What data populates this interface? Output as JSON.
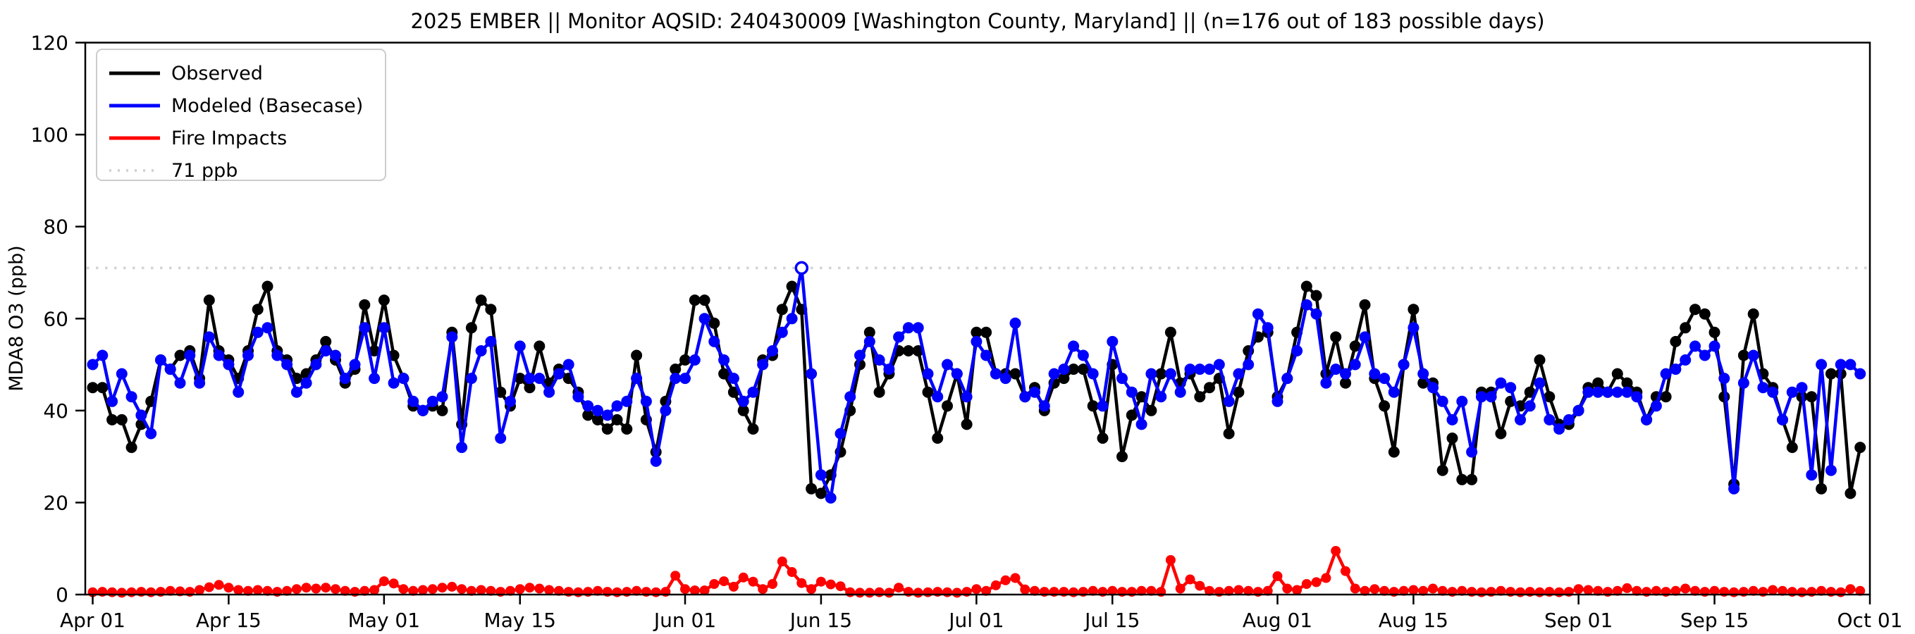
{
  "title": "2025 EMBER || Monitor AQSID: 240430009 [Washington County, Maryland] || (n=176 out of 183 possible days)",
  "y_axis": {
    "label": "MDA8 O3 (ppb)",
    "ticks": [
      0,
      20,
      40,
      60,
      80,
      100,
      120
    ],
    "min": 0,
    "max": 120
  },
  "x_axis": {
    "tick_labels": [
      "Apr 01",
      "Apr 15",
      "May 01",
      "May 15",
      "Jun 01",
      "Jun 15",
      "Jul 01",
      "Jul 15",
      "Aug 01",
      "Aug 15",
      "Sep 01",
      "Sep 15",
      "Oct 01"
    ],
    "tick_day_offsets": [
      0,
      14,
      30,
      44,
      61,
      75,
      91,
      105,
      122,
      136,
      153,
      167,
      183
    ]
  },
  "legend": {
    "items": [
      {
        "label": "Observed",
        "color": "#000000",
        "style": "solid"
      },
      {
        "label": "Modeled (Basecase)",
        "color": "#0000ff",
        "style": "solid"
      },
      {
        "label": "Fire Impacts",
        "color": "#ff0000",
        "style": "solid"
      },
      {
        "label": "71 ppb",
        "color": "#d3d3d3",
        "style": "dotted"
      }
    ]
  },
  "chart_data": {
    "type": "line",
    "title": "2025 EMBER || Monitor AQSID: 240430009 [Washington County, Maryland] || (n=176 out of 183 possible days)",
    "xlabel": "",
    "ylabel": "MDA8 O3 (ppb)",
    "ylim": [
      0,
      120
    ],
    "x_unit": "daily values, day index 0 = Apr 01, last index 182 = Sep 30",
    "n_points": 183,
    "grid": false,
    "legend_position": "upper left",
    "reference_line": {
      "value": 71,
      "label": "71 ppb",
      "color": "#d3d3d3",
      "style": "dotted"
    },
    "series": [
      {
        "name": "Observed",
        "color": "#000000",
        "marker": "circle",
        "values": [
          45,
          45,
          38,
          38,
          32,
          37,
          42,
          51,
          49,
          52,
          53,
          47,
          64,
          53,
          51,
          47,
          53,
          62,
          67,
          53,
          51,
          47,
          48,
          51,
          55,
          51,
          46,
          49,
          63,
          53,
          64,
          52,
          47,
          41,
          40,
          41,
          40,
          57,
          37,
          58,
          64,
          62,
          44,
          41,
          47,
          45,
          54,
          46,
          49,
          47,
          44,
          39,
          38,
          36,
          38,
          36,
          52,
          38,
          31,
          42,
          49,
          51,
          64,
          64,
          59,
          48,
          44,
          40,
          36,
          51,
          52,
          62,
          67,
          62,
          23,
          22,
          26,
          31,
          40,
          50,
          57,
          44,
          48,
          53,
          53,
          53,
          44,
          34,
          41,
          48,
          37,
          57,
          57,
          48,
          48,
          48,
          43,
          45,
          40,
          46,
          47,
          49,
          49,
          41,
          34,
          50,
          30,
          39,
          43,
          40,
          48,
          57,
          46,
          48,
          43,
          45,
          47,
          35,
          44,
          53,
          56,
          57,
          43,
          47,
          57,
          67,
          65,
          48,
          56,
          46,
          54,
          63,
          47,
          41,
          31,
          50,
          62,
          46,
          46,
          27,
          34,
          25,
          25,
          44,
          44,
          35,
          42,
          41,
          44,
          51,
          43,
          37,
          37,
          40,
          45,
          46,
          44,
          48,
          46,
          44,
          38,
          43,
          43,
          55,
          58,
          62,
          61,
          57,
          43,
          24,
          52,
          61,
          48,
          45,
          38,
          32,
          43,
          43,
          23,
          48,
          48,
          22,
          32
        ]
      },
      {
        "name": "Modeled (Basecase)",
        "color": "#0000ff",
        "marker": "circle",
        "open_marker_day_index": 73,
        "values": [
          50,
          52,
          42,
          48,
          43,
          39,
          35,
          51,
          49,
          46,
          52,
          46,
          56,
          52,
          50,
          44,
          52,
          57,
          58,
          52,
          50,
          44,
          46,
          50,
          53,
          52,
          47,
          50,
          58,
          47,
          58,
          46,
          47,
          42,
          40,
          42,
          43,
          56,
          32,
          47,
          53,
          55,
          34,
          42,
          54,
          47,
          47,
          44,
          48,
          50,
          43,
          41,
          40,
          39,
          41,
          42,
          47,
          42,
          29,
          40,
          47,
          47,
          51,
          60,
          55,
          51,
          47,
          42,
          44,
          50,
          53,
          57,
          60,
          71,
          48,
          26,
          21,
          35,
          43,
          52,
          55,
          51,
          49,
          56,
          58,
          58,
          48,
          43,
          50,
          48,
          43,
          55,
          52,
          48,
          47,
          59,
          43,
          44,
          41,
          48,
          49,
          54,
          52,
          48,
          41,
          55,
          47,
          44,
          37,
          48,
          43,
          48,
          44,
          49,
          49,
          49,
          50,
          42,
          48,
          50,
          61,
          58,
          42,
          47,
          53,
          63,
          61,
          46,
          49,
          48,
          50,
          56,
          48,
          47,
          44,
          50,
          58,
          48,
          45,
          42,
          38,
          42,
          31,
          43,
          43,
          46,
          45,
          38,
          41,
          46,
          38,
          36,
          38,
          40,
          44,
          44,
          44,
          44,
          44,
          43,
          38,
          41,
          48,
          49,
          51,
          54,
          52,
          54,
          47,
          23,
          46,
          52,
          45,
          44,
          38,
          44,
          45,
          26,
          50,
          27,
          50,
          50,
          48
        ]
      },
      {
        "name": "Fire Impacts",
        "color": "#ff0000",
        "marker": "circle",
        "values": [
          0.5,
          0.6,
          0.5,
          0.4,
          0.5,
          0.6,
          0.5,
          0.6,
          0.8,
          0.7,
          0.6,
          1.0,
          1.6,
          2.1,
          1.5,
          1.0,
          0.8,
          1.0,
          0.8,
          0.6,
          0.8,
          1.2,
          1.5,
          1.3,
          1.5,
          1.2,
          0.8,
          0.6,
          0.8,
          1.0,
          2.9,
          2.4,
          1.2,
          0.8,
          1.0,
          1.2,
          1.5,
          1.7,
          1.2,
          0.8,
          1.0,
          0.8,
          0.6,
          0.8,
          1.2,
          1.5,
          1.3,
          1.0,
          0.8,
          0.6,
          0.5,
          0.6,
          0.8,
          0.6,
          0.5,
          0.6,
          0.8,
          0.6,
          0.5,
          0.6,
          4.1,
          1.2,
          0.9,
          0.9,
          2.3,
          2.9,
          1.7,
          3.7,
          2.8,
          1.2,
          2.3,
          7.2,
          4.9,
          2.5,
          1.2,
          2.8,
          2.2,
          1.8,
          0.5,
          0.4,
          0.4,
          0.5,
          0.4,
          1.5,
          0.6,
          0.4,
          0.5,
          0.6,
          0.5,
          0.4,
          0.6,
          1.2,
          0.8,
          2.0,
          3.1,
          3.6,
          1.1,
          0.8,
          0.6,
          0.6,
          0.6,
          0.5,
          0.6,
          0.8,
          0.6,
          0.8,
          0.6,
          0.6,
          0.8,
          0.8,
          0.6,
          7.5,
          1.3,
          3.3,
          1.9,
          0.8,
          0.6,
          0.8,
          1.0,
          0.8,
          0.6,
          0.8,
          4.0,
          1.3,
          1.0,
          2.3,
          2.7,
          3.6,
          9.5,
          5.1,
          1.3,
          0.8,
          1.2,
          0.8,
          0.6,
          0.8,
          1.0,
          0.8,
          1.3,
          0.8,
          0.6,
          0.8,
          0.6,
          0.5,
          0.6,
          0.8,
          0.6,
          0.5,
          0.6,
          0.5,
          0.6,
          0.5,
          0.6,
          1.2,
          1.0,
          0.8,
          0.6,
          0.8,
          1.4,
          0.8,
          0.6,
          0.8,
          0.6,
          0.8,
          1.3,
          0.8,
          0.6,
          0.8,
          0.6,
          0.5,
          0.6,
          0.8,
          0.6,
          1.0,
          0.8,
          0.6,
          0.5,
          0.6,
          0.8,
          0.6,
          0.5,
          1.2,
          0.8
        ]
      }
    ]
  }
}
